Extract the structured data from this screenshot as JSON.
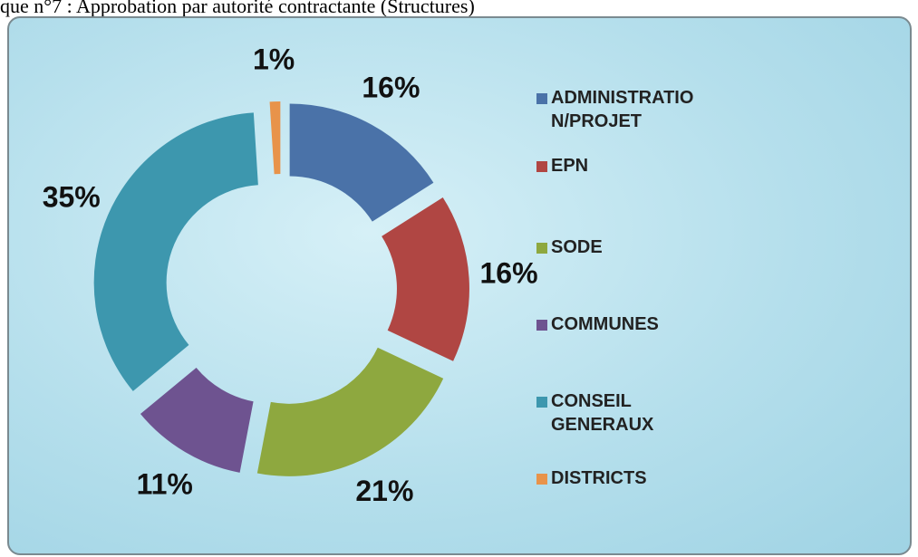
{
  "chart_data": {
    "type": "donut",
    "title": "que n°7 : Approbation par autorité contractante (Structures)",
    "categories": [
      "ADMINISTRATION/PROJET",
      "EPN",
      "SODE",
      "COMMUNES",
      "CONSEIL GENERAUX",
      "DISTRICTS"
    ],
    "values": [
      16,
      16,
      21,
      11,
      35,
      1
    ],
    "value_labels": [
      "16%",
      "16%",
      "21%",
      "11%",
      "35%",
      "1%"
    ],
    "colors": [
      "#4a72a8",
      "#b04643",
      "#8ea83f",
      "#6e5390",
      "#3d97ae",
      "#e8934a"
    ],
    "legend": "right"
  }
}
